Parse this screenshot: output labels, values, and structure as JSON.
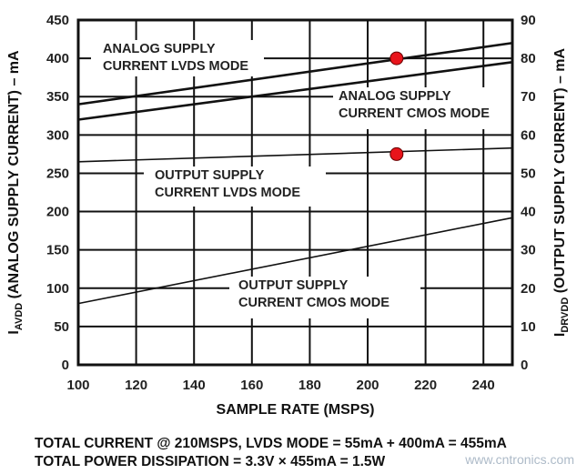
{
  "chart_data": {
    "type": "line",
    "xlabel": "SAMPLE RATE (MSPS)",
    "ylabel_left": "I_AVDD (ANALOG SUPPLY CURRENT) – mA",
    "ylabel_left_main": "I",
    "ylabel_left_sub": "AVDD",
    "ylabel_left_rest": " (ANALOG SUPPLY CURRENT) – mA",
    "ylabel_right_main": "I",
    "ylabel_right_sub": "DRVDD",
    "ylabel_right_rest": " (OUTPUT SUPPLY CURRENT) – mA",
    "xlim": [
      100,
      250
    ],
    "ylim_left": [
      0,
      450
    ],
    "ylim_right": [
      0,
      90
    ],
    "x_ticks": [
      "100",
      "120",
      "140",
      "160",
      "180",
      "200",
      "220",
      "240"
    ],
    "y_ticks_left": [
      "0",
      "50",
      "100",
      "150",
      "200",
      "250",
      "300",
      "350",
      "400",
      "450"
    ],
    "y_ticks_right": [
      "0",
      "10",
      "20",
      "30",
      "40",
      "50",
      "60",
      "70",
      "80",
      "90"
    ],
    "grid": true,
    "series": [
      {
        "name": "ANALOG SUPPLY CURRENT LVDS MODE",
        "label_lines": [
          "ANALOG SUPPLY",
          "CURRENT LVDS MODE"
        ],
        "axis": "left",
        "x": [
          100,
          250
        ],
        "y": [
          340,
          420
        ]
      },
      {
        "name": "ANALOG SUPPLY CURRENT CMOS MODE",
        "label_lines": [
          "ANALOG SUPPLY",
          "CURRENT CMOS MODE"
        ],
        "axis": "left",
        "x": [
          100,
          250
        ],
        "y": [
          320,
          395
        ]
      },
      {
        "name": "OUTPUT SUPPLY CURRENT LVDS MODE",
        "label_lines": [
          "OUTPUT SUPPLY",
          "CURRENT LVDS MODE"
        ],
        "axis": "right",
        "x": [
          100,
          250
        ],
        "y": [
          53,
          56.6
        ]
      },
      {
        "name": "OUTPUT SUPPLY CURRENT CMOS MODE",
        "label_lines": [
          "OUTPUT SUPPLY",
          "CURRENT CMOS MODE"
        ],
        "axis": "right",
        "x": [
          100,
          250
        ],
        "y": [
          16,
          38.4
        ]
      }
    ],
    "markers": [
      {
        "x": 210,
        "y": 400,
        "axis": "left",
        "color": "#e8141b"
      },
      {
        "x": 210,
        "y": 55,
        "axis": "right",
        "color": "#e8141b"
      }
    ]
  },
  "footer": {
    "line1": "TOTAL CURRENT @ 210MSPS, LVDS MODE = 55mA + 400mA = 455mA",
    "line2": "TOTAL POWER DISSIPATION = 3.3V × 455mA = 1.5W"
  },
  "watermark": "www.cntronics.com"
}
